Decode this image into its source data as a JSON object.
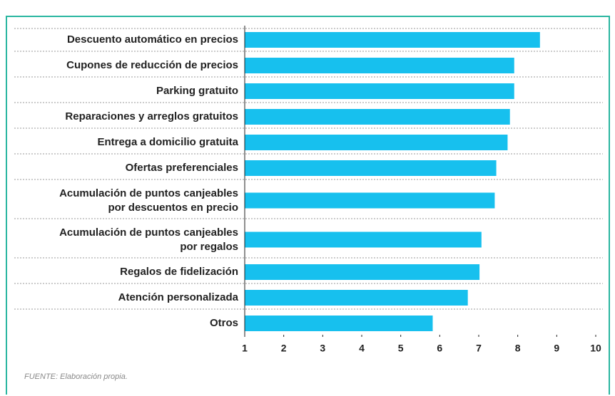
{
  "chart_data": {
    "type": "bar",
    "orientation": "horizontal",
    "categories": [
      "Descuento automático en precios",
      "Cupones de reducción de precios",
      "Parking gratuito",
      "Reparaciones y arreglos gratuitos",
      "Entrega a domicilio gratuita",
      "Ofertas preferenciales",
      "Acumulación de puntos canjeables\npor descuentos en precio",
      "Acumulación de puntos canjeables\npor regalos",
      "Regalos de fidelización",
      "Atención personalizada",
      "Otros"
    ],
    "values": [
      8.57,
      7.91,
      7.91,
      7.8,
      7.74,
      7.45,
      7.41,
      7.07,
      7.02,
      6.72,
      5.82
    ],
    "color": "#17c0ee",
    "xlim": [
      1,
      10
    ],
    "xticks": [
      1,
      2,
      3,
      4,
      5,
      6,
      7,
      8,
      9,
      10
    ],
    "source": "FUENTE: Elaboración propia."
  }
}
